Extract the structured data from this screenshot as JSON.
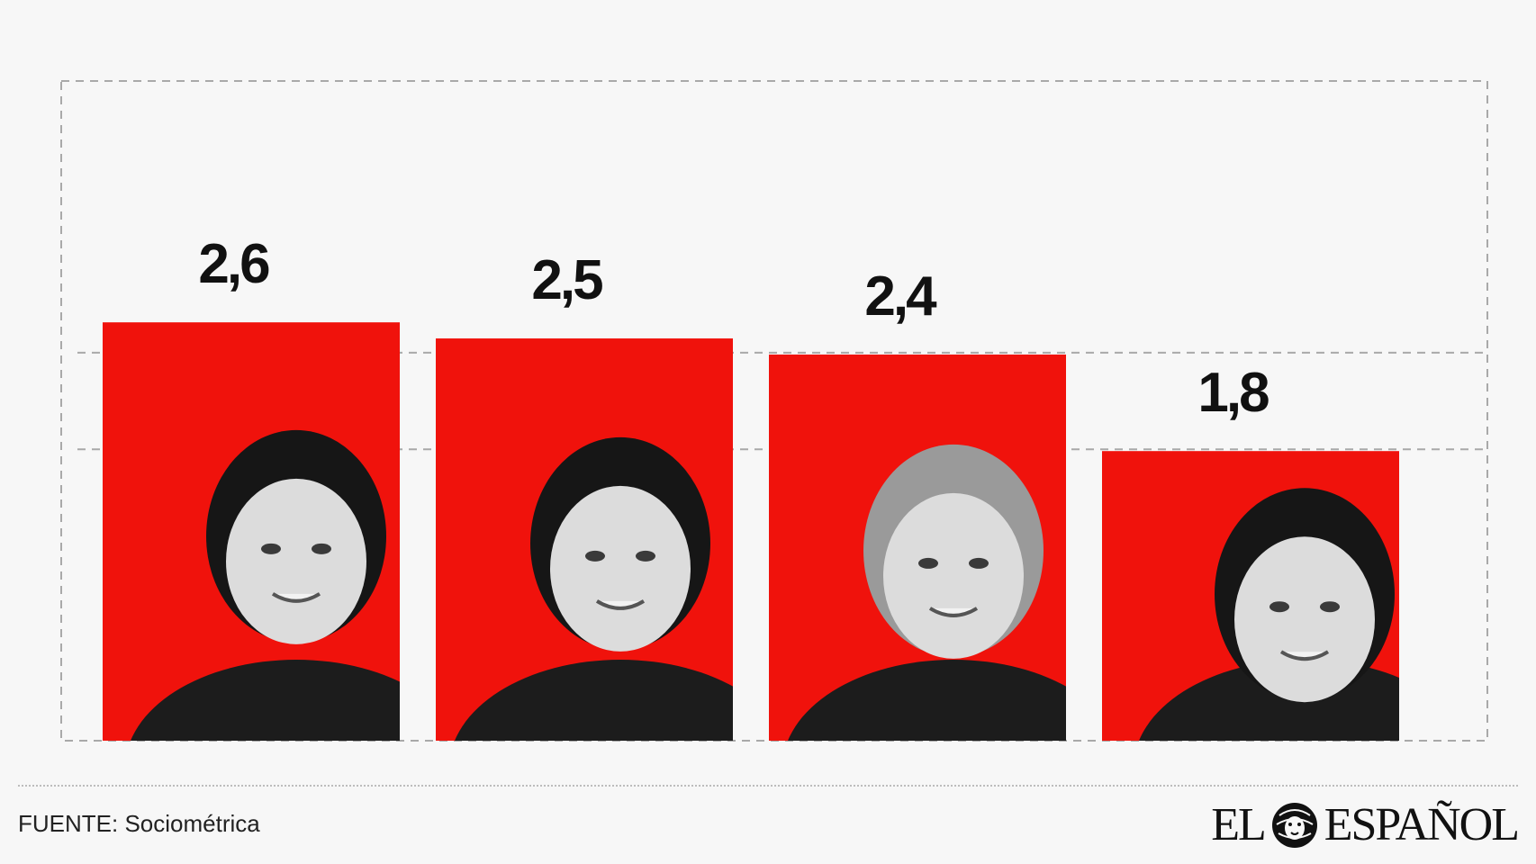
{
  "chart_data": {
    "type": "bar",
    "categories": [
      "",
      "",
      "",
      ""
    ],
    "values": [
      2.6,
      2.5,
      2.4,
      1.8
    ],
    "value_labels": [
      "2,6",
      "2,5",
      "2,4",
      "1,8"
    ],
    "title": "",
    "xlabel": "",
    "ylabel": "",
    "ylim": [
      0,
      4.1
    ],
    "grid": true,
    "bar_color": "#f0120c"
  },
  "footer": {
    "source": "FUENTE: Sociométrica",
    "logo_left": "EL",
    "logo_right": "ESPAÑOL",
    "logo_icon": "lion-head-icon"
  }
}
